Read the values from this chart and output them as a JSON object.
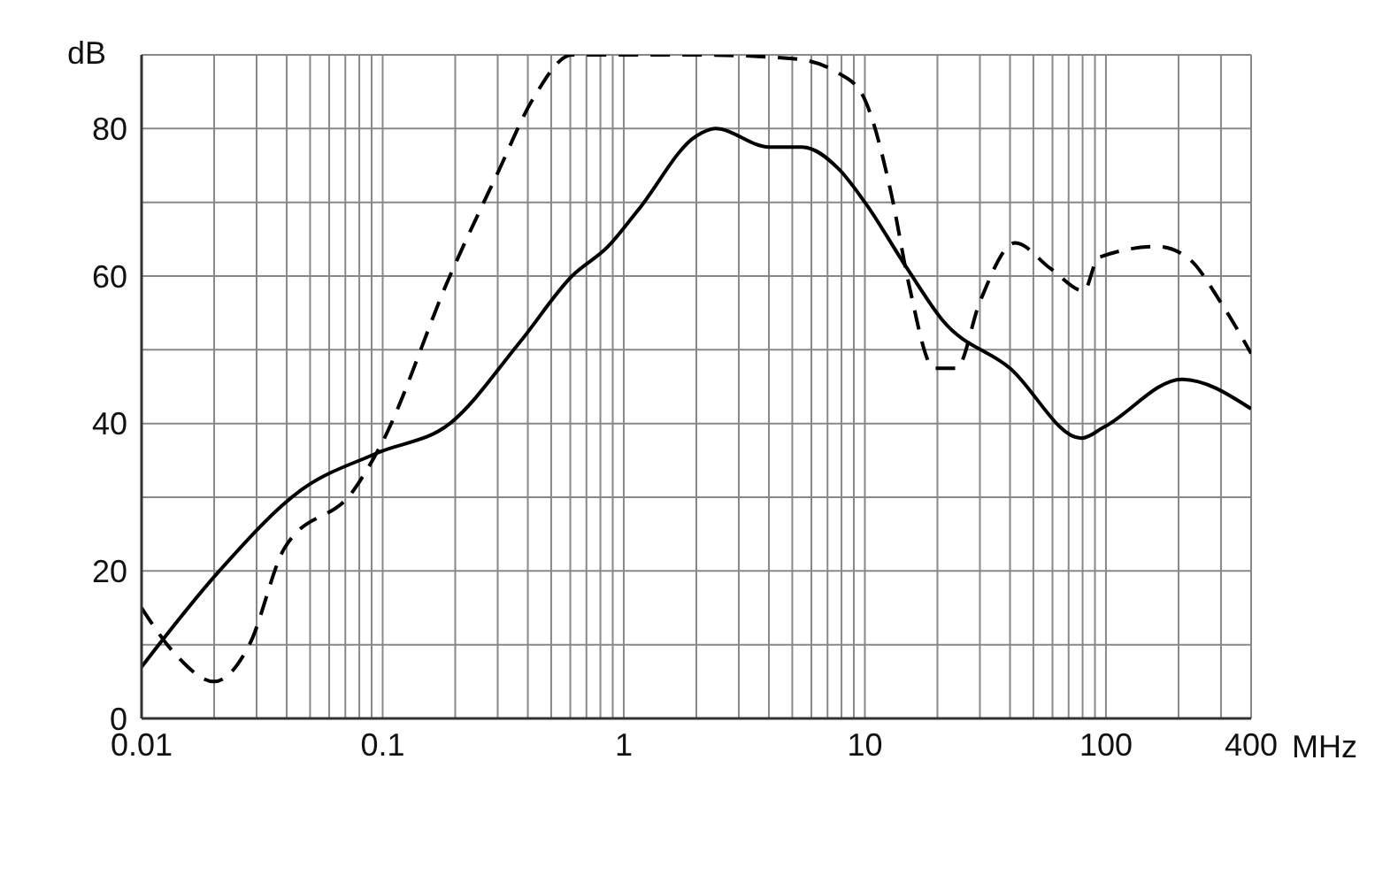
{
  "chart_data": {
    "type": "line",
    "xlabel": "MHz",
    "ylabel": "dB",
    "log": "x",
    "grid": true,
    "marker": "none",
    "xlim": [
      0.01,
      400
    ],
    "ylim": [
      0,
      90
    ],
    "xticks": [
      0.01,
      {
        "value": 0.02,
        "label": null
      },
      {
        "value": 0.03,
        "label": null
      },
      {
        "value": 0.04,
        "label": null
      },
      {
        "value": 0.05,
        "label": null
      },
      {
        "value": 0.06,
        "label": null
      },
      {
        "value": 0.07,
        "label": null
      },
      {
        "value": 0.08,
        "label": null
      },
      {
        "value": 0.09,
        "label": null
      },
      0.1,
      {
        "value": 0.2,
        "label": null
      },
      {
        "value": 0.3,
        "label": null
      },
      {
        "value": 0.4,
        "label": null
      },
      {
        "value": 0.5,
        "label": null
      },
      {
        "value": 0.6,
        "label": null
      },
      {
        "value": 0.7,
        "label": null
      },
      {
        "value": 0.8,
        "label": null
      },
      {
        "value": 0.9,
        "label": null
      },
      1,
      {
        "value": 2,
        "label": null
      },
      {
        "value": 3,
        "label": null
      },
      {
        "value": 4,
        "label": null
      },
      {
        "value": 5,
        "label": null
      },
      {
        "value": 6,
        "label": null
      },
      {
        "value": 7,
        "label": null
      },
      {
        "value": 8,
        "label": null
      },
      {
        "value": 9,
        "label": null
      },
      10,
      {
        "value": 20,
        "label": null
      },
      {
        "value": 30,
        "label": null
      },
      {
        "value": 40,
        "label": null
      },
      {
        "value": 50,
        "label": null
      },
      {
        "value": 60,
        "label": null
      },
      {
        "value": 70,
        "label": null
      },
      {
        "value": 80,
        "label": null
      },
      {
        "value": 90,
        "label": null
      },
      100,
      {
        "value": 200,
        "label": null
      },
      {
        "value": 300,
        "label": null
      },
      400
    ],
    "yticks": [
      0,
      {
        "value": 10,
        "label": null
      },
      20,
      {
        "value": 30,
        "label": null
      },
      40,
      {
        "value": 50,
        "label": null
      },
      60,
      {
        "value": 70,
        "label": null
      },
      80,
      {
        "value": 90,
        "label": null
      }
    ],
    "series": [
      {
        "color": "#000000",
        "line_style": "solid",
        "x": [
          0.01,
          0.021,
          0.046,
          0.095,
          0.19,
          0.37,
          0.61,
          0.86,
          1.15,
          2.0,
          2.4,
          4.0,
          5.5,
          7.8,
          10,
          15,
          21,
          40,
          79,
          98,
          207,
          400
        ],
        "values": [
          7,
          20,
          31,
          36,
          40,
          51,
          60,
          64,
          69,
          79,
          80,
          77.5,
          77.5,
          74.5,
          70,
          61,
          54,
          47.5,
          38,
          39.5,
          46,
          42
        ]
      },
      {
        "color": "#000000",
        "line_style": "dashed",
        "x": [
          0.01,
          0.014,
          0.02,
          0.028,
          0.039,
          0.076,
          0.098,
          0.19,
          0.3,
          0.42,
          0.61,
          1,
          2,
          5,
          7.8,
          9.8,
          12.9,
          15.2,
          19.4,
          24,
          30,
          42,
          59,
          81,
          93,
          163,
          218,
          305,
          400
        ],
        "values": [
          15,
          8.5,
          5,
          10,
          23,
          31,
          37,
          60,
          74,
          84,
          90,
          90,
          90,
          89.5,
          87.5,
          84.5,
          71,
          59,
          47.5,
          47.5,
          56.5,
          64.5,
          61,
          58,
          62.5,
          64,
          62.5,
          56,
          49.5
        ]
      }
    ]
  }
}
